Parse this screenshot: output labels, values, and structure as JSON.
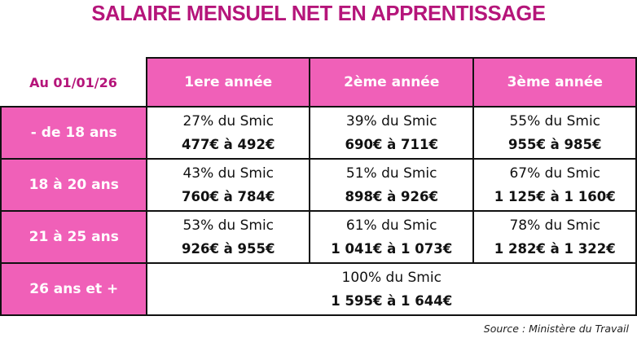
{
  "title": "SALAIRE MENSUEL NET EN APPRENTISSAGE",
  "date_label": "Au 01/01/26",
  "years": [
    "1ere année",
    "2ème année",
    "3ème année"
  ],
  "rows": [
    {
      "age": "- de 18 ans",
      "cells": [
        {
          "pct": "27% du Smic",
          "amount": "477€ à 492€"
        },
        {
          "pct": "39% du Smic",
          "amount": "690€ à 711€"
        },
        {
          "pct": "55% du Smic",
          "amount": "955€ à 985€"
        }
      ]
    },
    {
      "age": "18 à 20 ans",
      "cells": [
        {
          "pct": "43% du Smic",
          "amount": "760€ à 784€"
        },
        {
          "pct": "51% du Smic",
          "amount": "898€ à 926€"
        },
        {
          "pct": "67% du Smic",
          "amount": "1 125€ à 1 160€"
        }
      ]
    },
    {
      "age": "21 à 25 ans",
      "cells": [
        {
          "pct": "53% du Smic",
          "amount": "926€ à 955€"
        },
        {
          "pct": "61% du Smic",
          "amount": "1 041€ à 1 073€"
        },
        {
          "pct": "78% du Smic",
          "amount": "1 282€ à 1 322€"
        }
      ]
    }
  ],
  "last_row": {
    "age": "26 ans et +",
    "pct": "100% du Smic",
    "amount": "1 595€ à 1 644€"
  },
  "source": "Source : Ministère du Travail",
  "colors": {
    "accent": "#b5157a",
    "header_fill": "#f060b8"
  }
}
